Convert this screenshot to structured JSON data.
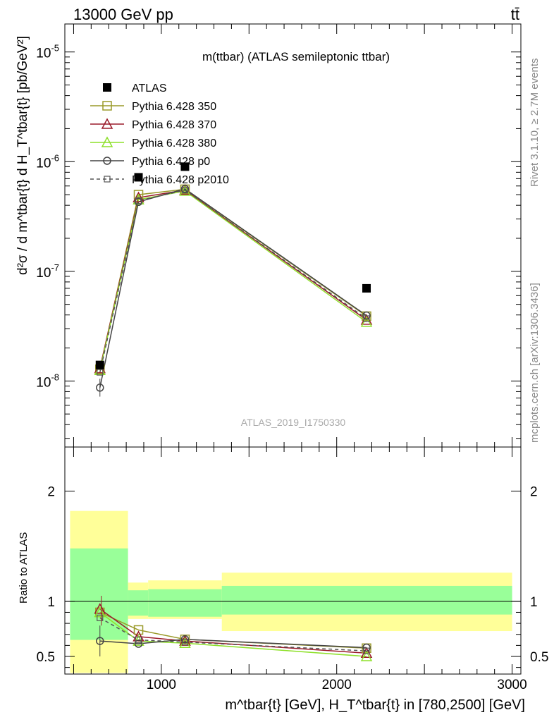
{
  "header": {
    "left": "13000 GeV pp",
    "right": "tt̄"
  },
  "side_labels": {
    "rivet": "Rivet 3.1.10, ≥ 2.7M events",
    "mcplots": "mcplots.cern.ch [arXiv:1306.3436]"
  },
  "chart_data": [
    {
      "type": "line",
      "title": "m(ttbar) (ATLAS semileptonic ttbar)",
      "watermark": "ATLAS_2019_I1750330",
      "ylabel": "d²σ / d m^tbar{t} d H_T^tbar{t} [pb/GeV²]",
      "yscale": "log",
      "ylim": [
        2.5e-09,
        1.8e-05
      ],
      "xlim": [
        450,
        3050
      ],
      "y_tick_labels": [
        "10^-8",
        "10^-7",
        "10^-6",
        "10^-5"
      ],
      "legend_position": "top-left",
      "data": {
        "name": "ATLAS",
        "x": [
          650,
          870,
          1135,
          2170
        ],
        "y": [
          1.4e-08,
          7.2e-07,
          9e-07,
          7e-08
        ]
      },
      "series": [
        {
          "name": "Pythia 6.428 350",
          "color": "#9a9a2a",
          "marker": "square-open",
          "dash": "solid",
          "x": [
            650,
            870,
            1135,
            2170
          ],
          "y": [
            1.28e-08,
            5e-07,
            5.6e-07,
            3.9e-08
          ]
        },
        {
          "name": "Pythia 6.428 370",
          "color": "#9a1a2a",
          "marker": "triangle-open",
          "dash": "solid",
          "x": [
            650,
            870,
            1135,
            2170
          ],
          "y": [
            1.3e-08,
            4.7e-07,
            5.5e-07,
            3.6e-08
          ]
        },
        {
          "name": "Pythia 6.428 380",
          "color": "#8ee02a",
          "marker": "triangle-open",
          "dash": "solid",
          "x": [
            650,
            870,
            1135,
            2170
          ],
          "y": [
            1.25e-08,
            4.5e-07,
            5.4e-07,
            3.45e-08
          ]
        },
        {
          "name": "Pythia 6.428 p0",
          "color": "#444444",
          "marker": "circle-open",
          "dash": "solid",
          "x": [
            650,
            870,
            1135,
            2170
          ],
          "y": [
            8.7e-09,
            4.3e-07,
            5.65e-07,
            3.95e-08
          ]
        },
        {
          "name": "Pythia 6.428 p2010",
          "color": "#555555",
          "marker": "square-small",
          "dash": "dashed",
          "x": [
            650,
            870,
            1135,
            2170
          ],
          "y": [
            1.2e-08,
            4.4e-07,
            5.5e-07,
            3.7e-08
          ]
        }
      ]
    },
    {
      "type": "line",
      "ylabel": "Ratio to ATLAS",
      "xlabel": "m^tbar{t} [GeV], H_T^tbar{t} in [780,2500] [GeV]",
      "ylim": [
        0.34,
        2.4
      ],
      "xlim": [
        450,
        3050
      ],
      "y_tick_labels": [
        "0.5",
        "1",
        "2"
      ],
      "x_tick_labels": [
        "1000",
        "2000",
        "3000"
      ],
      "bands": [
        {
          "x": [
            480,
            810
          ],
          "inner": [
            0.65,
            1.48
          ],
          "outer": [
            0.35,
            1.82
          ]
        },
        {
          "x": [
            810,
            925
          ],
          "inner": [
            0.87,
            1.1
          ],
          "outer": [
            0.84,
            1.17
          ]
        },
        {
          "x": [
            925,
            1345
          ],
          "inner": [
            0.86,
            1.11
          ],
          "outer": [
            0.84,
            1.19
          ]
        },
        {
          "x": [
            1345,
            3000
          ],
          "inner": [
            0.88,
            1.14
          ],
          "outer": [
            0.73,
            1.26
          ]
        }
      ],
      "series": [
        {
          "name": "Pythia 6.428 350",
          "x": [
            650,
            870,
            1135,
            2170
          ],
          "y": [
            0.9,
            0.74,
            0.655,
            0.575
          ]
        },
        {
          "name": "Pythia 6.428 370",
          "x": [
            650,
            870,
            1135,
            2170
          ],
          "y": [
            0.93,
            0.68,
            0.64,
            0.53
          ]
        },
        {
          "name": "Pythia 6.428 380",
          "x": [
            650,
            870,
            1135,
            2170
          ],
          "y": [
            0.9,
            0.64,
            0.62,
            0.5
          ]
        },
        {
          "name": "Pythia 6.428 p0",
          "x": [
            650,
            870,
            1135,
            2170
          ],
          "y": [
            0.64,
            0.615,
            0.655,
            0.58
          ]
        },
        {
          "name": "Pythia 6.428 p2010",
          "x": [
            650,
            870,
            1135,
            2170
          ],
          "y": [
            0.85,
            0.65,
            0.63,
            0.55
          ]
        }
      ]
    }
  ]
}
